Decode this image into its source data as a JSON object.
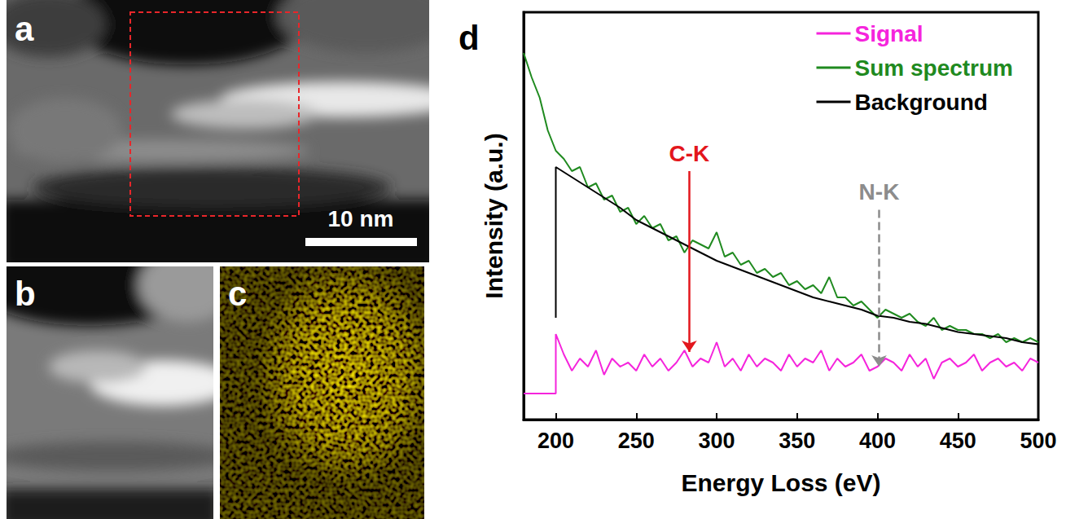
{
  "panels": [
    {
      "label": "a",
      "scale_bar": "10 nm"
    },
    {
      "label": "b"
    },
    {
      "label": "c"
    }
  ],
  "chart_data": {
    "label": "d",
    "type": "line",
    "x_label": "Energy Loss (eV)",
    "y_label": "Intensity (a.u.)",
    "xlim": [
      180,
      500
    ],
    "xticks": [
      200,
      250,
      300,
      350,
      400,
      450,
      500
    ],
    "ylim": [
      0,
      1
    ],
    "yticks": [],
    "tick_labels": "x",
    "grid": false,
    "legend": "upper right",
    "series": [
      {
        "name": "Signal",
        "color": "#f524dc",
        "x": [
          180,
          200,
          200,
          205,
          210,
          215,
          220,
          225,
          230,
          235,
          240,
          245,
          250,
          255,
          260,
          265,
          270,
          275,
          280,
          285,
          290,
          295,
          300,
          305,
          310,
          315,
          320,
          325,
          330,
          335,
          340,
          345,
          350,
          355,
          360,
          365,
          370,
          375,
          380,
          385,
          390,
          395,
          400,
          405,
          410,
          415,
          420,
          425,
          430,
          435,
          440,
          445,
          450,
          455,
          460,
          465,
          470,
          475,
          480,
          485,
          490,
          495,
          500
        ],
        "values": [
          0.064,
          0.064,
          0.21,
          0.16,
          0.12,
          0.15,
          0.13,
          0.17,
          0.11,
          0.15,
          0.13,
          0.14,
          0.12,
          0.16,
          0.13,
          0.15,
          0.12,
          0.14,
          0.17,
          0.13,
          0.15,
          0.14,
          0.19,
          0.13,
          0.15,
          0.12,
          0.16,
          0.13,
          0.15,
          0.14,
          0.12,
          0.16,
          0.13,
          0.15,
          0.14,
          0.17,
          0.12,
          0.15,
          0.13,
          0.14,
          0.16,
          0.12,
          0.13,
          0.15,
          0.14,
          0.12,
          0.16,
          0.13,
          0.15,
          0.1,
          0.14,
          0.15,
          0.13,
          0.14,
          0.16,
          0.12,
          0.14,
          0.15,
          0.13,
          0.14,
          0.12,
          0.15,
          0.14
        ]
      },
      {
        "name": "Sum spectrum",
        "color": "#1f8a1f",
        "x": [
          180,
          185,
          190,
          195,
          200,
          205,
          210,
          215,
          220,
          225,
          230,
          235,
          240,
          245,
          250,
          255,
          260,
          265,
          270,
          275,
          280,
          285,
          290,
          295,
          300,
          305,
          310,
          315,
          320,
          325,
          330,
          335,
          340,
          345,
          350,
          355,
          360,
          365,
          370,
          375,
          380,
          385,
          390,
          395,
          400,
          405,
          410,
          415,
          420,
          425,
          430,
          435,
          440,
          445,
          450,
          455,
          460,
          465,
          470,
          475,
          480,
          485,
          490,
          495,
          500
        ],
        "values": [
          0.9,
          0.84,
          0.79,
          0.71,
          0.66,
          0.64,
          0.61,
          0.62,
          0.57,
          0.58,
          0.54,
          0.55,
          0.51,
          0.52,
          0.48,
          0.5,
          0.47,
          0.48,
          0.44,
          0.45,
          0.41,
          0.44,
          0.43,
          0.42,
          0.46,
          0.4,
          0.41,
          0.38,
          0.39,
          0.36,
          0.37,
          0.35,
          0.36,
          0.33,
          0.34,
          0.32,
          0.33,
          0.31,
          0.35,
          0.3,
          0.3,
          0.28,
          0.29,
          0.27,
          0.25,
          0.27,
          0.26,
          0.25,
          0.26,
          0.24,
          0.23,
          0.25,
          0.22,
          0.23,
          0.22,
          0.22,
          0.21,
          0.21,
          0.2,
          0.21,
          0.19,
          0.2,
          0.19,
          0.2,
          0.19
        ]
      },
      {
        "name": "Background",
        "color": "#000000",
        "x": [
          200,
          200,
          210,
          220,
          230,
          240,
          250,
          260,
          270,
          280,
          290,
          300,
          310,
          320,
          330,
          340,
          350,
          360,
          370,
          380,
          390,
          400,
          410,
          420,
          430,
          440,
          450,
          460,
          470,
          480,
          490,
          500
        ],
        "values": [
          0.25,
          0.62,
          0.595,
          0.57,
          0.545,
          0.52,
          0.49,
          0.47,
          0.45,
          0.43,
          0.41,
          0.39,
          0.375,
          0.36,
          0.345,
          0.33,
          0.315,
          0.3,
          0.29,
          0.28,
          0.27,
          0.255,
          0.25,
          0.24,
          0.235,
          0.225,
          0.215,
          0.21,
          0.205,
          0.2,
          0.19,
          0.185
        ]
      }
    ],
    "annotations": [
      {
        "text": "C-K",
        "x": 283,
        "y_start": 0.61,
        "y_end": 0.166,
        "color": "#e3161c",
        "line_style": "solid"
      },
      {
        "text": "N-K",
        "x": 401,
        "y_start": 0.515,
        "y_end": 0.13,
        "color": "#8c8c8c",
        "line_style": "dashed"
      }
    ]
  }
}
